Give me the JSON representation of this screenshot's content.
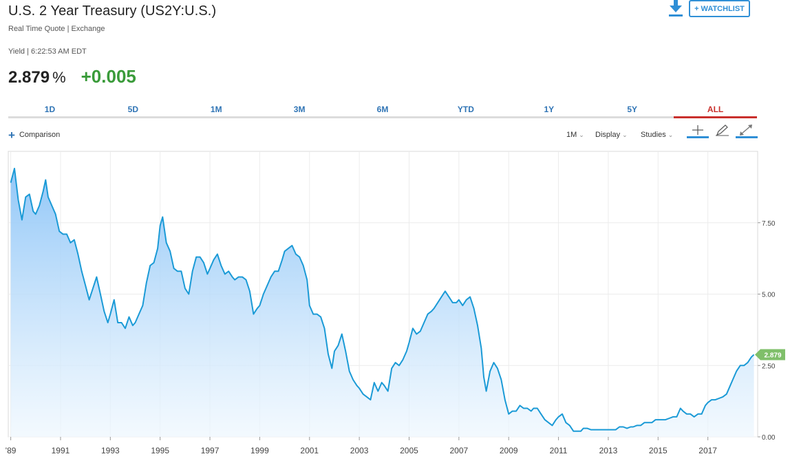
{
  "header": {
    "title": "U.S. 2 Year Treasury (US2Y:U.S.)",
    "subtitle": "Real Time Quote | Exchange",
    "yield_line": "Yield | 6:22:53 AM EDT",
    "last": "2.879",
    "pct_sign": "%",
    "change": "+0.005",
    "watchlist_label": "+ WATCHLIST"
  },
  "colors": {
    "accent": "#2f74b5",
    "line": "#1a9ad6",
    "positive": "#3a9b3a",
    "active_tab": "#c9302c",
    "badge": "#7fbf6a"
  },
  "tabs": [
    {
      "label": "1D"
    },
    {
      "label": "5D"
    },
    {
      "label": "1M"
    },
    {
      "label": "3M"
    },
    {
      "label": "6M"
    },
    {
      "label": "YTD"
    },
    {
      "label": "1Y"
    },
    {
      "label": "5Y"
    },
    {
      "label": "ALL"
    }
  ],
  "active_tab": "ALL",
  "toolbar": {
    "comparison_label": "Comparison",
    "interval_label": "1M",
    "display_label": "Display",
    "studies_label": "Studies"
  },
  "icons": [
    "download-icon",
    "plus-icon",
    "crosshair-icon",
    "pencil-icon",
    "expand-icon"
  ],
  "chart_data": {
    "type": "area",
    "x_ticks": [
      "'89",
      "1991",
      "1993",
      "1995",
      "1997",
      "1999",
      "2001",
      "2003",
      "2005",
      "2007",
      "2009",
      "2011",
      "2013",
      "2015",
      "2017"
    ],
    "y_ticks": [
      "0.00",
      "2.50",
      "5.00",
      "7.50"
    ],
    "ylim": [
      0,
      10
    ],
    "last_value_label": "2.879",
    "grid": true,
    "series": [
      {
        "points": [
          [
            1989.0,
            8.9
          ],
          [
            1989.15,
            9.4
          ],
          [
            1989.3,
            8.3
          ],
          [
            1989.45,
            7.6
          ],
          [
            1989.6,
            8.4
          ],
          [
            1989.75,
            8.5
          ],
          [
            1989.9,
            7.9
          ],
          [
            1990.0,
            7.8
          ],
          [
            1990.15,
            8.1
          ],
          [
            1990.3,
            8.6
          ],
          [
            1990.4,
            9.0
          ],
          [
            1990.5,
            8.4
          ],
          [
            1990.65,
            8.1
          ],
          [
            1990.8,
            7.8
          ],
          [
            1990.95,
            7.2
          ],
          [
            1991.1,
            7.1
          ],
          [
            1991.25,
            7.1
          ],
          [
            1991.4,
            6.8
          ],
          [
            1991.55,
            6.9
          ],
          [
            1991.7,
            6.4
          ],
          [
            1991.85,
            5.8
          ],
          [
            1992.0,
            5.3
          ],
          [
            1992.15,
            4.8
          ],
          [
            1992.3,
            5.2
          ],
          [
            1992.45,
            5.6
          ],
          [
            1992.6,
            5.0
          ],
          [
            1992.75,
            4.4
          ],
          [
            1992.9,
            4.0
          ],
          [
            1993.0,
            4.3
          ],
          [
            1993.15,
            4.8
          ],
          [
            1993.3,
            4.0
          ],
          [
            1993.45,
            4.0
          ],
          [
            1993.6,
            3.8
          ],
          [
            1993.75,
            4.2
          ],
          [
            1993.9,
            3.9
          ],
          [
            1994.0,
            4.0
          ],
          [
            1994.15,
            4.3
          ],
          [
            1994.3,
            4.6
          ],
          [
            1994.45,
            5.4
          ],
          [
            1994.6,
            6.0
          ],
          [
            1994.75,
            6.1
          ],
          [
            1994.9,
            6.6
          ],
          [
            1995.0,
            7.4
          ],
          [
            1995.1,
            7.7
          ],
          [
            1995.25,
            6.8
          ],
          [
            1995.4,
            6.5
          ],
          [
            1995.55,
            5.9
          ],
          [
            1995.7,
            5.8
          ],
          [
            1995.85,
            5.8
          ],
          [
            1996.0,
            5.2
          ],
          [
            1996.15,
            5.0
          ],
          [
            1996.3,
            5.8
          ],
          [
            1996.45,
            6.3
          ],
          [
            1996.6,
            6.3
          ],
          [
            1996.75,
            6.1
          ],
          [
            1996.9,
            5.7
          ],
          [
            1997.0,
            5.9
          ],
          [
            1997.15,
            6.2
          ],
          [
            1997.3,
            6.4
          ],
          [
            1997.45,
            6.0
          ],
          [
            1997.6,
            5.7
          ],
          [
            1997.75,
            5.8
          ],
          [
            1997.9,
            5.6
          ],
          [
            1998.0,
            5.5
          ],
          [
            1998.15,
            5.6
          ],
          [
            1998.3,
            5.6
          ],
          [
            1998.45,
            5.5
          ],
          [
            1998.6,
            5.1
          ],
          [
            1998.75,
            4.3
          ],
          [
            1998.9,
            4.5
          ],
          [
            1999.0,
            4.6
          ],
          [
            1999.15,
            5.0
          ],
          [
            1999.3,
            5.3
          ],
          [
            1999.45,
            5.6
          ],
          [
            1999.6,
            5.8
          ],
          [
            1999.75,
            5.8
          ],
          [
            1999.9,
            6.2
          ],
          [
            2000.0,
            6.5
          ],
          [
            2000.15,
            6.6
          ],
          [
            2000.3,
            6.7
          ],
          [
            2000.45,
            6.4
          ],
          [
            2000.6,
            6.3
          ],
          [
            2000.75,
            6.0
          ],
          [
            2000.9,
            5.5
          ],
          [
            2001.0,
            4.6
          ],
          [
            2001.15,
            4.3
          ],
          [
            2001.3,
            4.3
          ],
          [
            2001.45,
            4.2
          ],
          [
            2001.6,
            3.8
          ],
          [
            2001.75,
            2.9
          ],
          [
            2001.9,
            2.4
          ],
          [
            2002.0,
            3.0
          ],
          [
            2002.15,
            3.2
          ],
          [
            2002.3,
            3.6
          ],
          [
            2002.45,
            3.0
          ],
          [
            2002.6,
            2.3
          ],
          [
            2002.75,
            2.0
          ],
          [
            2002.9,
            1.8
          ],
          [
            2003.0,
            1.7
          ],
          [
            2003.15,
            1.5
          ],
          [
            2003.3,
            1.4
          ],
          [
            2003.45,
            1.3
          ],
          [
            2003.6,
            1.9
          ],
          [
            2003.75,
            1.6
          ],
          [
            2003.9,
            1.9
          ],
          [
            2004.0,
            1.8
          ],
          [
            2004.15,
            1.6
          ],
          [
            2004.3,
            2.4
          ],
          [
            2004.45,
            2.6
          ],
          [
            2004.6,
            2.5
          ],
          [
            2004.75,
            2.7
          ],
          [
            2004.9,
            3.0
          ],
          [
            2005.0,
            3.3
          ],
          [
            2005.15,
            3.8
          ],
          [
            2005.3,
            3.6
          ],
          [
            2005.45,
            3.7
          ],
          [
            2005.6,
            4.0
          ],
          [
            2005.75,
            4.3
          ],
          [
            2005.9,
            4.4
          ],
          [
            2006.0,
            4.5
          ],
          [
            2006.15,
            4.7
          ],
          [
            2006.3,
            4.9
          ],
          [
            2006.45,
            5.1
          ],
          [
            2006.6,
            4.9
          ],
          [
            2006.75,
            4.7
          ],
          [
            2006.9,
            4.7
          ],
          [
            2007.0,
            4.8
          ],
          [
            2007.15,
            4.6
          ],
          [
            2007.3,
            4.8
          ],
          [
            2007.45,
            4.9
          ],
          [
            2007.6,
            4.5
          ],
          [
            2007.75,
            3.9
          ],
          [
            2007.9,
            3.1
          ],
          [
            2008.0,
            2.1
          ],
          [
            2008.1,
            1.6
          ],
          [
            2008.25,
            2.3
          ],
          [
            2008.4,
            2.6
          ],
          [
            2008.55,
            2.4
          ],
          [
            2008.7,
            2.0
          ],
          [
            2008.85,
            1.3
          ],
          [
            2009.0,
            0.8
          ],
          [
            2009.15,
            0.9
          ],
          [
            2009.3,
            0.9
          ],
          [
            2009.45,
            1.1
          ],
          [
            2009.6,
            1.0
          ],
          [
            2009.75,
            1.0
          ],
          [
            2009.9,
            0.9
          ],
          [
            2010.0,
            1.0
          ],
          [
            2010.15,
            1.0
          ],
          [
            2010.3,
            0.8
          ],
          [
            2010.45,
            0.6
          ],
          [
            2010.6,
            0.5
          ],
          [
            2010.75,
            0.4
          ],
          [
            2010.9,
            0.6
          ],
          [
            2011.0,
            0.7
          ],
          [
            2011.15,
            0.8
          ],
          [
            2011.3,
            0.5
          ],
          [
            2011.45,
            0.4
          ],
          [
            2011.6,
            0.2
          ],
          [
            2011.75,
            0.2
          ],
          [
            2011.9,
            0.2
          ],
          [
            2012.0,
            0.3
          ],
          [
            2012.15,
            0.3
          ],
          [
            2012.3,
            0.25
          ],
          [
            2012.45,
            0.25
          ],
          [
            2012.6,
            0.25
          ],
          [
            2012.75,
            0.25
          ],
          [
            2012.9,
            0.25
          ],
          [
            2013.0,
            0.25
          ],
          [
            2013.15,
            0.25
          ],
          [
            2013.3,
            0.25
          ],
          [
            2013.45,
            0.35
          ],
          [
            2013.6,
            0.35
          ],
          [
            2013.75,
            0.3
          ],
          [
            2013.9,
            0.35
          ],
          [
            2014.0,
            0.35
          ],
          [
            2014.15,
            0.4
          ],
          [
            2014.3,
            0.4
          ],
          [
            2014.45,
            0.5
          ],
          [
            2014.6,
            0.5
          ],
          [
            2014.75,
            0.5
          ],
          [
            2014.9,
            0.6
          ],
          [
            2015.0,
            0.6
          ],
          [
            2015.15,
            0.6
          ],
          [
            2015.3,
            0.6
          ],
          [
            2015.45,
            0.65
          ],
          [
            2015.6,
            0.7
          ],
          [
            2015.75,
            0.7
          ],
          [
            2015.9,
            1.0
          ],
          [
            2016.0,
            0.9
          ],
          [
            2016.15,
            0.8
          ],
          [
            2016.3,
            0.8
          ],
          [
            2016.45,
            0.7
          ],
          [
            2016.6,
            0.8
          ],
          [
            2016.75,
            0.8
          ],
          [
            2016.9,
            1.1
          ],
          [
            2017.0,
            1.2
          ],
          [
            2017.15,
            1.3
          ],
          [
            2017.3,
            1.3
          ],
          [
            2017.45,
            1.35
          ],
          [
            2017.6,
            1.4
          ],
          [
            2017.75,
            1.5
          ],
          [
            2017.9,
            1.8
          ],
          [
            2018.0,
            2.0
          ],
          [
            2018.15,
            2.3
          ],
          [
            2018.3,
            2.5
          ],
          [
            2018.45,
            2.5
          ],
          [
            2018.6,
            2.6
          ],
          [
            2018.75,
            2.8
          ],
          [
            2018.85,
            2.879
          ]
        ]
      }
    ]
  }
}
